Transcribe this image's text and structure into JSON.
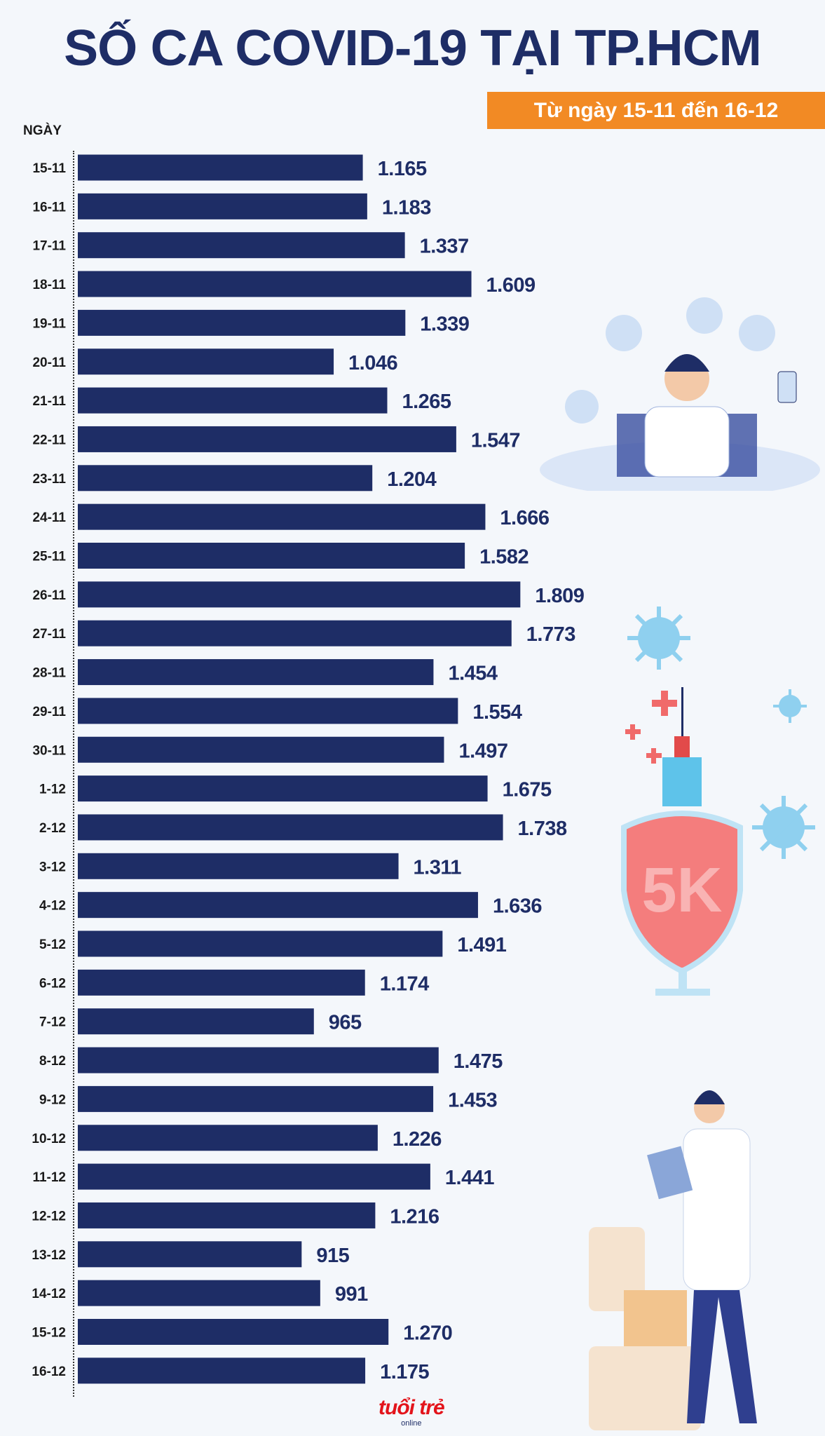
{
  "header": {
    "title": "SỐ CA COVID-19 TẠI TP.HCM",
    "subtitle": "Từ ngày 15-11 đến 16-12"
  },
  "logo": {
    "text": "tuổi trẻ",
    "sub": "online"
  },
  "illustration": {
    "shield_text": "5K"
  },
  "colors": {
    "bar": "#1e2d66",
    "accent": "#f28a24",
    "logo": "#e3141b",
    "background": "#f4f7fb"
  },
  "chart_data": {
    "type": "bar",
    "orientation": "horizontal",
    "title": "SỐ CA COVID-19 TẠI TP.HCM",
    "subtitle": "Từ ngày 15-11 đến 16-12",
    "ylabel": "NGÀY",
    "xlabel": "",
    "grid": false,
    "categories": [
      "15-11",
      "16-11",
      "17-11",
      "18-11",
      "19-11",
      "20-11",
      "21-11",
      "22-11",
      "23-11",
      "24-11",
      "25-11",
      "26-11",
      "27-11",
      "28-11",
      "29-11",
      "30-11",
      "1-12",
      "2-12",
      "3-12",
      "4-12",
      "5-12",
      "6-12",
      "7-12",
      "8-12",
      "9-12",
      "10-12",
      "11-12",
      "12-12",
      "13-12",
      "14-12",
      "15-12",
      "16-12"
    ],
    "values": [
      1165,
      1183,
      1337,
      1609,
      1339,
      1046,
      1265,
      1547,
      1204,
      1666,
      1582,
      1809,
      1773,
      1454,
      1554,
      1497,
      1675,
      1738,
      1311,
      1636,
      1491,
      1174,
      965,
      1475,
      1453,
      1226,
      1441,
      1216,
      915,
      991,
      1270,
      1175
    ],
    "value_labels": [
      "1.165",
      "1.183",
      "1.337",
      "1.609",
      "1.339",
      "1.046",
      "1.265",
      "1.547",
      "1.204",
      "1.666",
      "1.582",
      "1.809",
      "1.773",
      "1.454",
      "1.554",
      "1.497",
      "1.675",
      "1.738",
      "1.311",
      "1.636",
      "1.491",
      "1.174",
      "965",
      "1.475",
      "1.453",
      "1.226",
      "1.441",
      "1.216",
      "915",
      "991",
      "1.270",
      "1.175"
    ]
  }
}
